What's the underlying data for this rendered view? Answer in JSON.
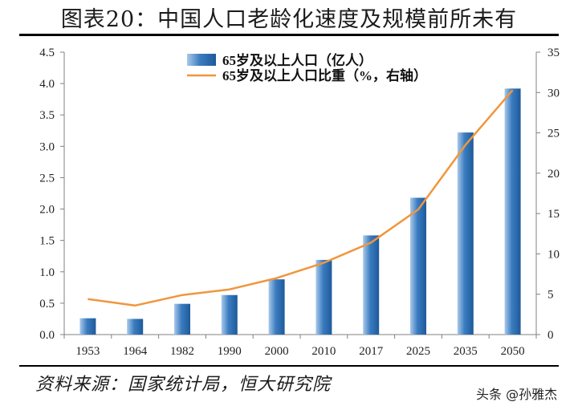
{
  "title": "图表20：中国人口老龄化速度及规模前所未有",
  "source": "资料来源：国家统计局，恒大研究院",
  "watermark": "头条 @孙雅杰",
  "colors": {
    "bar": "#3a7cc0",
    "bar_light": "#a9c9ea",
    "line": "#f0963c",
    "axis": "#808080"
  },
  "chart_data": {
    "type": "bar",
    "categories": [
      "1953",
      "1964",
      "1982",
      "1990",
      "2000",
      "2010",
      "2017",
      "2025",
      "2035",
      "2050"
    ],
    "series": [
      {
        "name": "65岁及以上人口（亿人）",
        "type": "bar",
        "axis": "left",
        "values": [
          0.26,
          0.25,
          0.49,
          0.63,
          0.88,
          1.19,
          1.58,
          2.18,
          3.22,
          3.92
        ]
      },
      {
        "name": "65岁及以上人口比重（%，右轴）",
        "type": "line",
        "axis": "right",
        "values": [
          4.4,
          3.6,
          4.9,
          5.6,
          7.0,
          8.9,
          11.4,
          15.5,
          23.5,
          30.3
        ]
      }
    ],
    "left_axis": {
      "ylim": [
        0,
        4.5
      ],
      "ticks": [
        "0.0",
        "0.5",
        "1.0",
        "1.5",
        "2.0",
        "2.5",
        "3.0",
        "3.5",
        "4.0",
        "4.5"
      ]
    },
    "right_axis": {
      "ylim": [
        0,
        35
      ],
      "ticks": [
        "0",
        "5",
        "10",
        "15",
        "20",
        "25",
        "30",
        "35"
      ]
    },
    "grid": false,
    "legend_position": "top-center"
  }
}
